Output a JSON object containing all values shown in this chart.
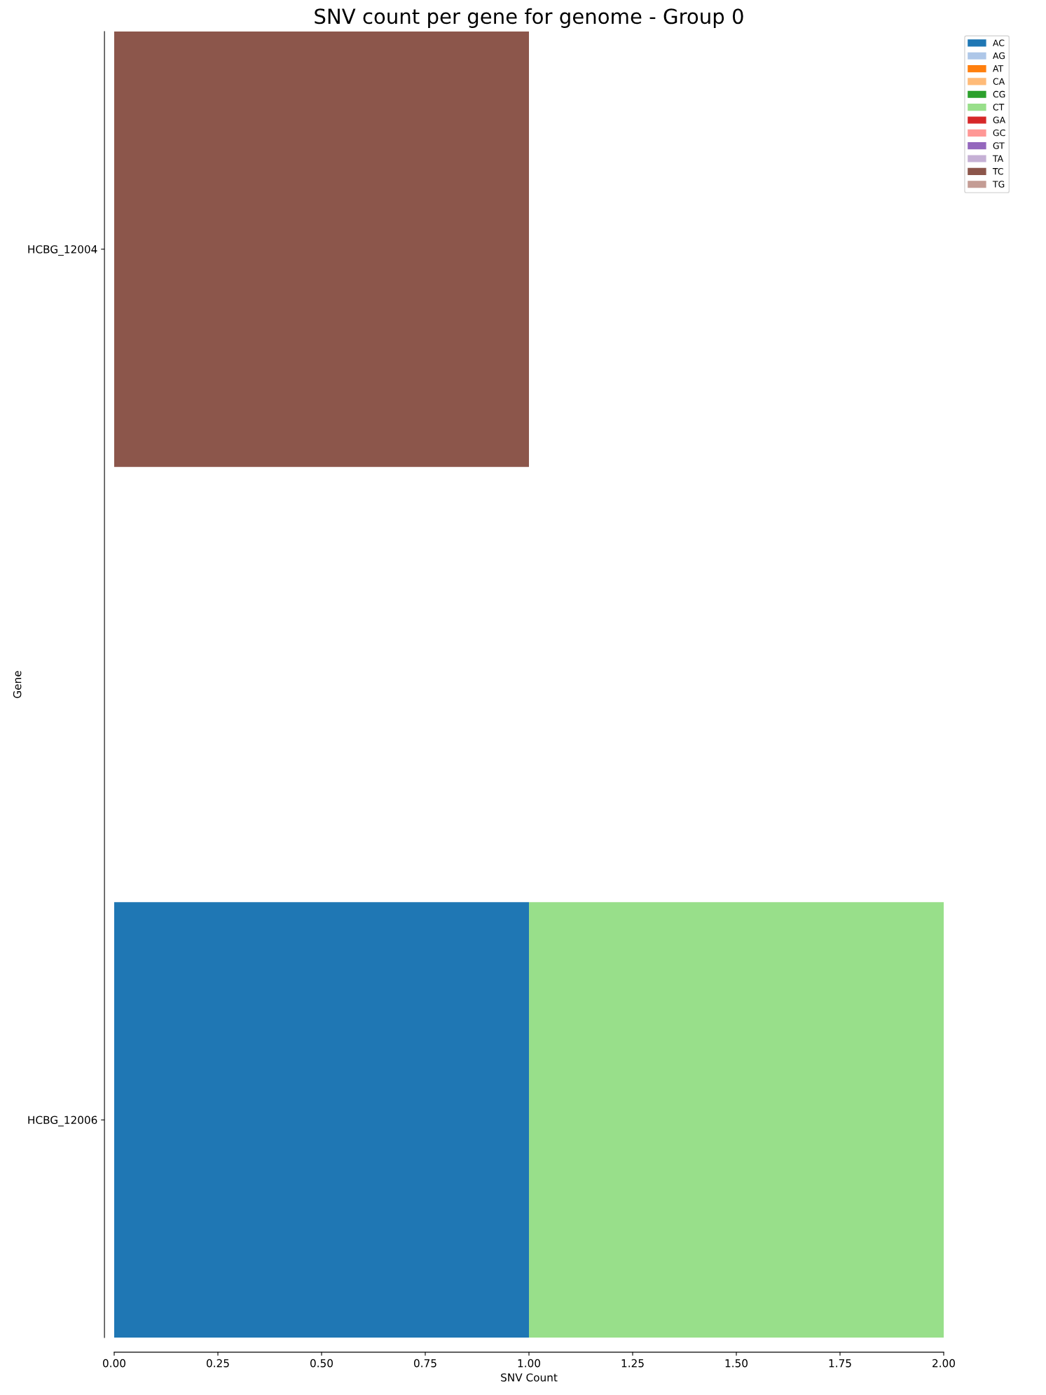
{
  "chart_data": {
    "type": "bar",
    "orientation": "horizontal",
    "stacked": true,
    "title": "SNV count per gene for genome - Group 0",
    "xlabel": "SNV Count",
    "ylabel": "Gene",
    "categories": [
      "HCBG_12004",
      "HCBG_12006"
    ],
    "series": [
      {
        "name": "AC",
        "color": "#1f77b4",
        "values": [
          0,
          1
        ]
      },
      {
        "name": "AG",
        "color": "#aec7e8",
        "values": [
          0,
          0
        ]
      },
      {
        "name": "AT",
        "color": "#ff7f0e",
        "values": [
          0,
          0
        ]
      },
      {
        "name": "CA",
        "color": "#ffbb78",
        "values": [
          0,
          0
        ]
      },
      {
        "name": "CG",
        "color": "#2ca02c",
        "values": [
          0,
          0
        ]
      },
      {
        "name": "CT",
        "color": "#98df8a",
        "values": [
          0,
          1
        ]
      },
      {
        "name": "GA",
        "color": "#d62728",
        "values": [
          0,
          0
        ]
      },
      {
        "name": "GC",
        "color": "#ff9896",
        "values": [
          0,
          0
        ]
      },
      {
        "name": "GT",
        "color": "#9467bd",
        "values": [
          0,
          0
        ]
      },
      {
        "name": "TA",
        "color": "#c5b0d5",
        "values": [
          0,
          0
        ]
      },
      {
        "name": "TC",
        "color": "#8c564b",
        "values": [
          1,
          0
        ]
      },
      {
        "name": "TG",
        "color": "#c49c94",
        "values": [
          0,
          0
        ]
      }
    ],
    "xlim": [
      0,
      2
    ],
    "xticks": [
      {
        "value": 0,
        "label": "0.00"
      },
      {
        "value": 0.25,
        "label": "0.25"
      },
      {
        "value": 0.5,
        "label": "0.50"
      },
      {
        "value": 0.75,
        "label": "0.75"
      },
      {
        "value": 1,
        "label": "1.00"
      },
      {
        "value": 1.25,
        "label": "1.25"
      },
      {
        "value": 1.5,
        "label": "1.50"
      },
      {
        "value": 1.75,
        "label": "1.75"
      },
      {
        "value": 2,
        "label": "2.00"
      }
    ],
    "grid": false,
    "legend": "top right"
  }
}
